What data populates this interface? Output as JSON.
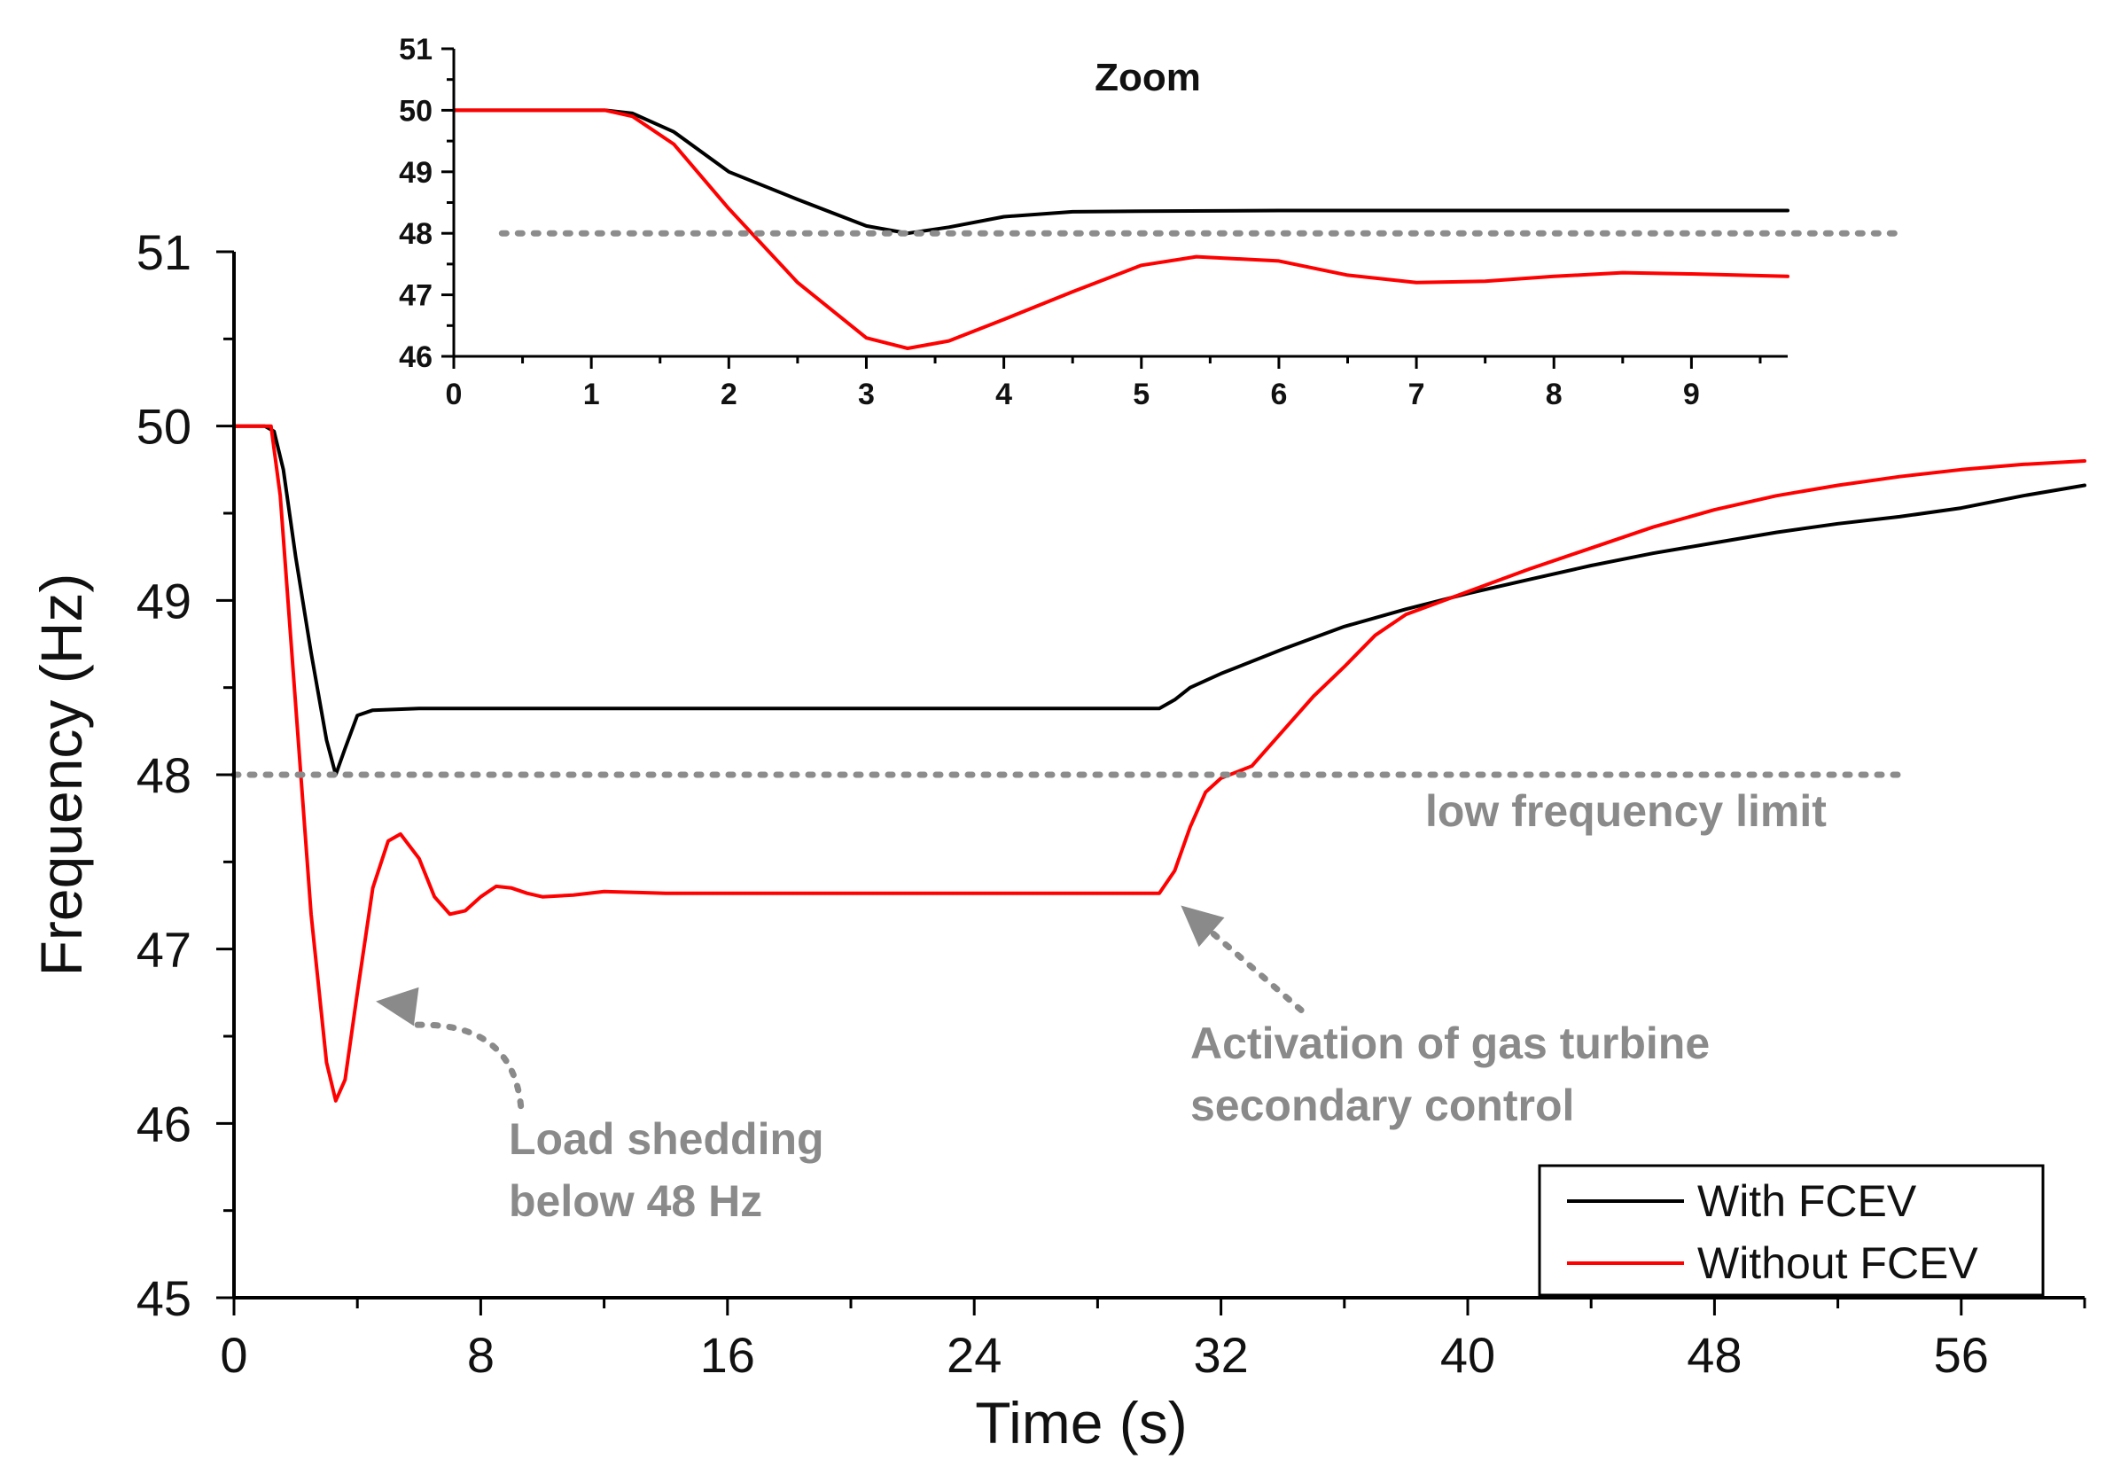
{
  "chart_data": [
    {
      "id": "main",
      "type": "line",
      "title": "",
      "xlabel": "Time (s)",
      "ylabel": "Frequency (Hz)",
      "xlim": [
        0,
        60
      ],
      "ylim": [
        45,
        51
      ],
      "xticks": [
        0,
        8,
        16,
        24,
        32,
        40,
        48,
        56
      ],
      "yticks": [
        45,
        46,
        47,
        48,
        49,
        50,
        51
      ],
      "series": [
        {
          "name": "With FCEV",
          "color": "#000000",
          "x": [
            0,
            1,
            1.3,
            1.6,
            2.0,
            2.5,
            3.0,
            3.3,
            3.6,
            4.0,
            4.5,
            6,
            10,
            20,
            30,
            30.5,
            31,
            32,
            34,
            36,
            38,
            40,
            42,
            44,
            46,
            48,
            50,
            52,
            54,
            56,
            58,
            60
          ],
          "y": [
            50,
            50,
            49.97,
            49.75,
            49.25,
            48.7,
            48.2,
            48.0,
            48.15,
            48.34,
            48.37,
            48.38,
            48.38,
            48.38,
            48.38,
            48.43,
            48.5,
            48.58,
            48.72,
            48.85,
            48.95,
            49.04,
            49.12,
            49.2,
            49.27,
            49.33,
            49.39,
            49.44,
            49.48,
            49.53,
            49.6,
            49.66
          ]
        },
        {
          "name": "Without FCEV",
          "color": "#ff0000",
          "x": [
            0,
            1,
            1.2,
            1.5,
            2.0,
            2.5,
            3.0,
            3.3,
            3.6,
            4.0,
            4.5,
            5.0,
            5.4,
            6.0,
            6.5,
            7.0,
            7.5,
            8.0,
            8.5,
            9.0,
            9.5,
            10,
            11,
            12,
            14,
            20,
            30,
            30.5,
            31,
            31.5,
            32,
            33,
            34,
            35,
            36,
            37,
            38,
            40,
            42,
            44,
            46,
            48,
            50,
            52,
            54,
            56,
            58,
            60
          ],
          "y": [
            50,
            50,
            50.0,
            49.6,
            48.4,
            47.2,
            46.35,
            46.13,
            46.25,
            46.75,
            47.35,
            47.62,
            47.66,
            47.52,
            47.3,
            47.2,
            47.22,
            47.3,
            47.36,
            47.35,
            47.32,
            47.3,
            47.31,
            47.33,
            47.32,
            47.32,
            47.32,
            47.45,
            47.7,
            47.9,
            47.98,
            48.05,
            48.25,
            48.45,
            48.62,
            48.8,
            48.92,
            49.05,
            49.18,
            49.3,
            49.42,
            49.52,
            49.6,
            49.66,
            49.71,
            49.75,
            49.78,
            49.8
          ]
        },
        {
          "name": "low frequency limit",
          "color": "#8c8c8c",
          "style": "dotted",
          "x": [
            0,
            54
          ],
          "y": [
            48,
            48
          ]
        }
      ],
      "annotations": [
        {
          "lines": [
            "low frequency limit"
          ]
        },
        {
          "lines": [
            "Load shedding",
            "below 48 Hz"
          ],
          "arrow_tip": [
            4.6,
            46.7
          ],
          "arrow_tail": [
            9.3,
            46.1
          ]
        },
        {
          "lines": [
            "Activation of gas turbine",
            "secondary control"
          ],
          "arrow_tip": [
            30.7,
            47.25
          ],
          "arrow_tail": [
            34.6,
            46.65
          ]
        }
      ],
      "legend": {
        "position": "bottom-right",
        "entries": [
          {
            "label": "With FCEV",
            "color": "#000000"
          },
          {
            "label": "Without FCEV",
            "color": "#ff0000"
          }
        ]
      }
    },
    {
      "id": "zoom",
      "type": "line",
      "title": "Zoom",
      "xlim": [
        0,
        9.7
      ],
      "ylim": [
        46,
        51
      ],
      "xticks": [
        0,
        1,
        2,
        3,
        4,
        5,
        6,
        7,
        8,
        9
      ],
      "yticks": [
        46,
        47,
        48,
        49,
        50,
        51
      ],
      "series": [
        {
          "name": "With FCEV",
          "color": "#000000",
          "x": [
            0,
            1.1,
            1.3,
            1.6,
            2.0,
            2.5,
            3.0,
            3.3,
            3.6,
            4.0,
            4.5,
            5,
            6,
            7,
            8,
            9,
            9.7
          ],
          "y": [
            50,
            50,
            49.95,
            49.65,
            49.0,
            48.55,
            48.12,
            48.0,
            48.1,
            48.27,
            48.35,
            48.36,
            48.37,
            48.37,
            48.37,
            48.37,
            48.37
          ]
        },
        {
          "name": "Without FCEV",
          "color": "#ff0000",
          "x": [
            0,
            1.1,
            1.3,
            1.6,
            2.0,
            2.5,
            3.0,
            3.3,
            3.6,
            4.0,
            4.5,
            5.0,
            5.4,
            6.0,
            6.5,
            7.0,
            7.5,
            8.0,
            8.5,
            9.0,
            9.7
          ],
          "y": [
            50,
            50,
            49.9,
            49.45,
            48.4,
            47.2,
            46.3,
            46.13,
            46.25,
            46.6,
            47.05,
            47.48,
            47.62,
            47.55,
            47.32,
            47.2,
            47.22,
            47.3,
            47.36,
            47.34,
            47.3
          ]
        },
        {
          "name": "low frequency limit",
          "color": "#8c8c8c",
          "style": "dotted",
          "x": [
            0.35,
            10.5
          ],
          "y": [
            48,
            48
          ]
        }
      ]
    }
  ]
}
